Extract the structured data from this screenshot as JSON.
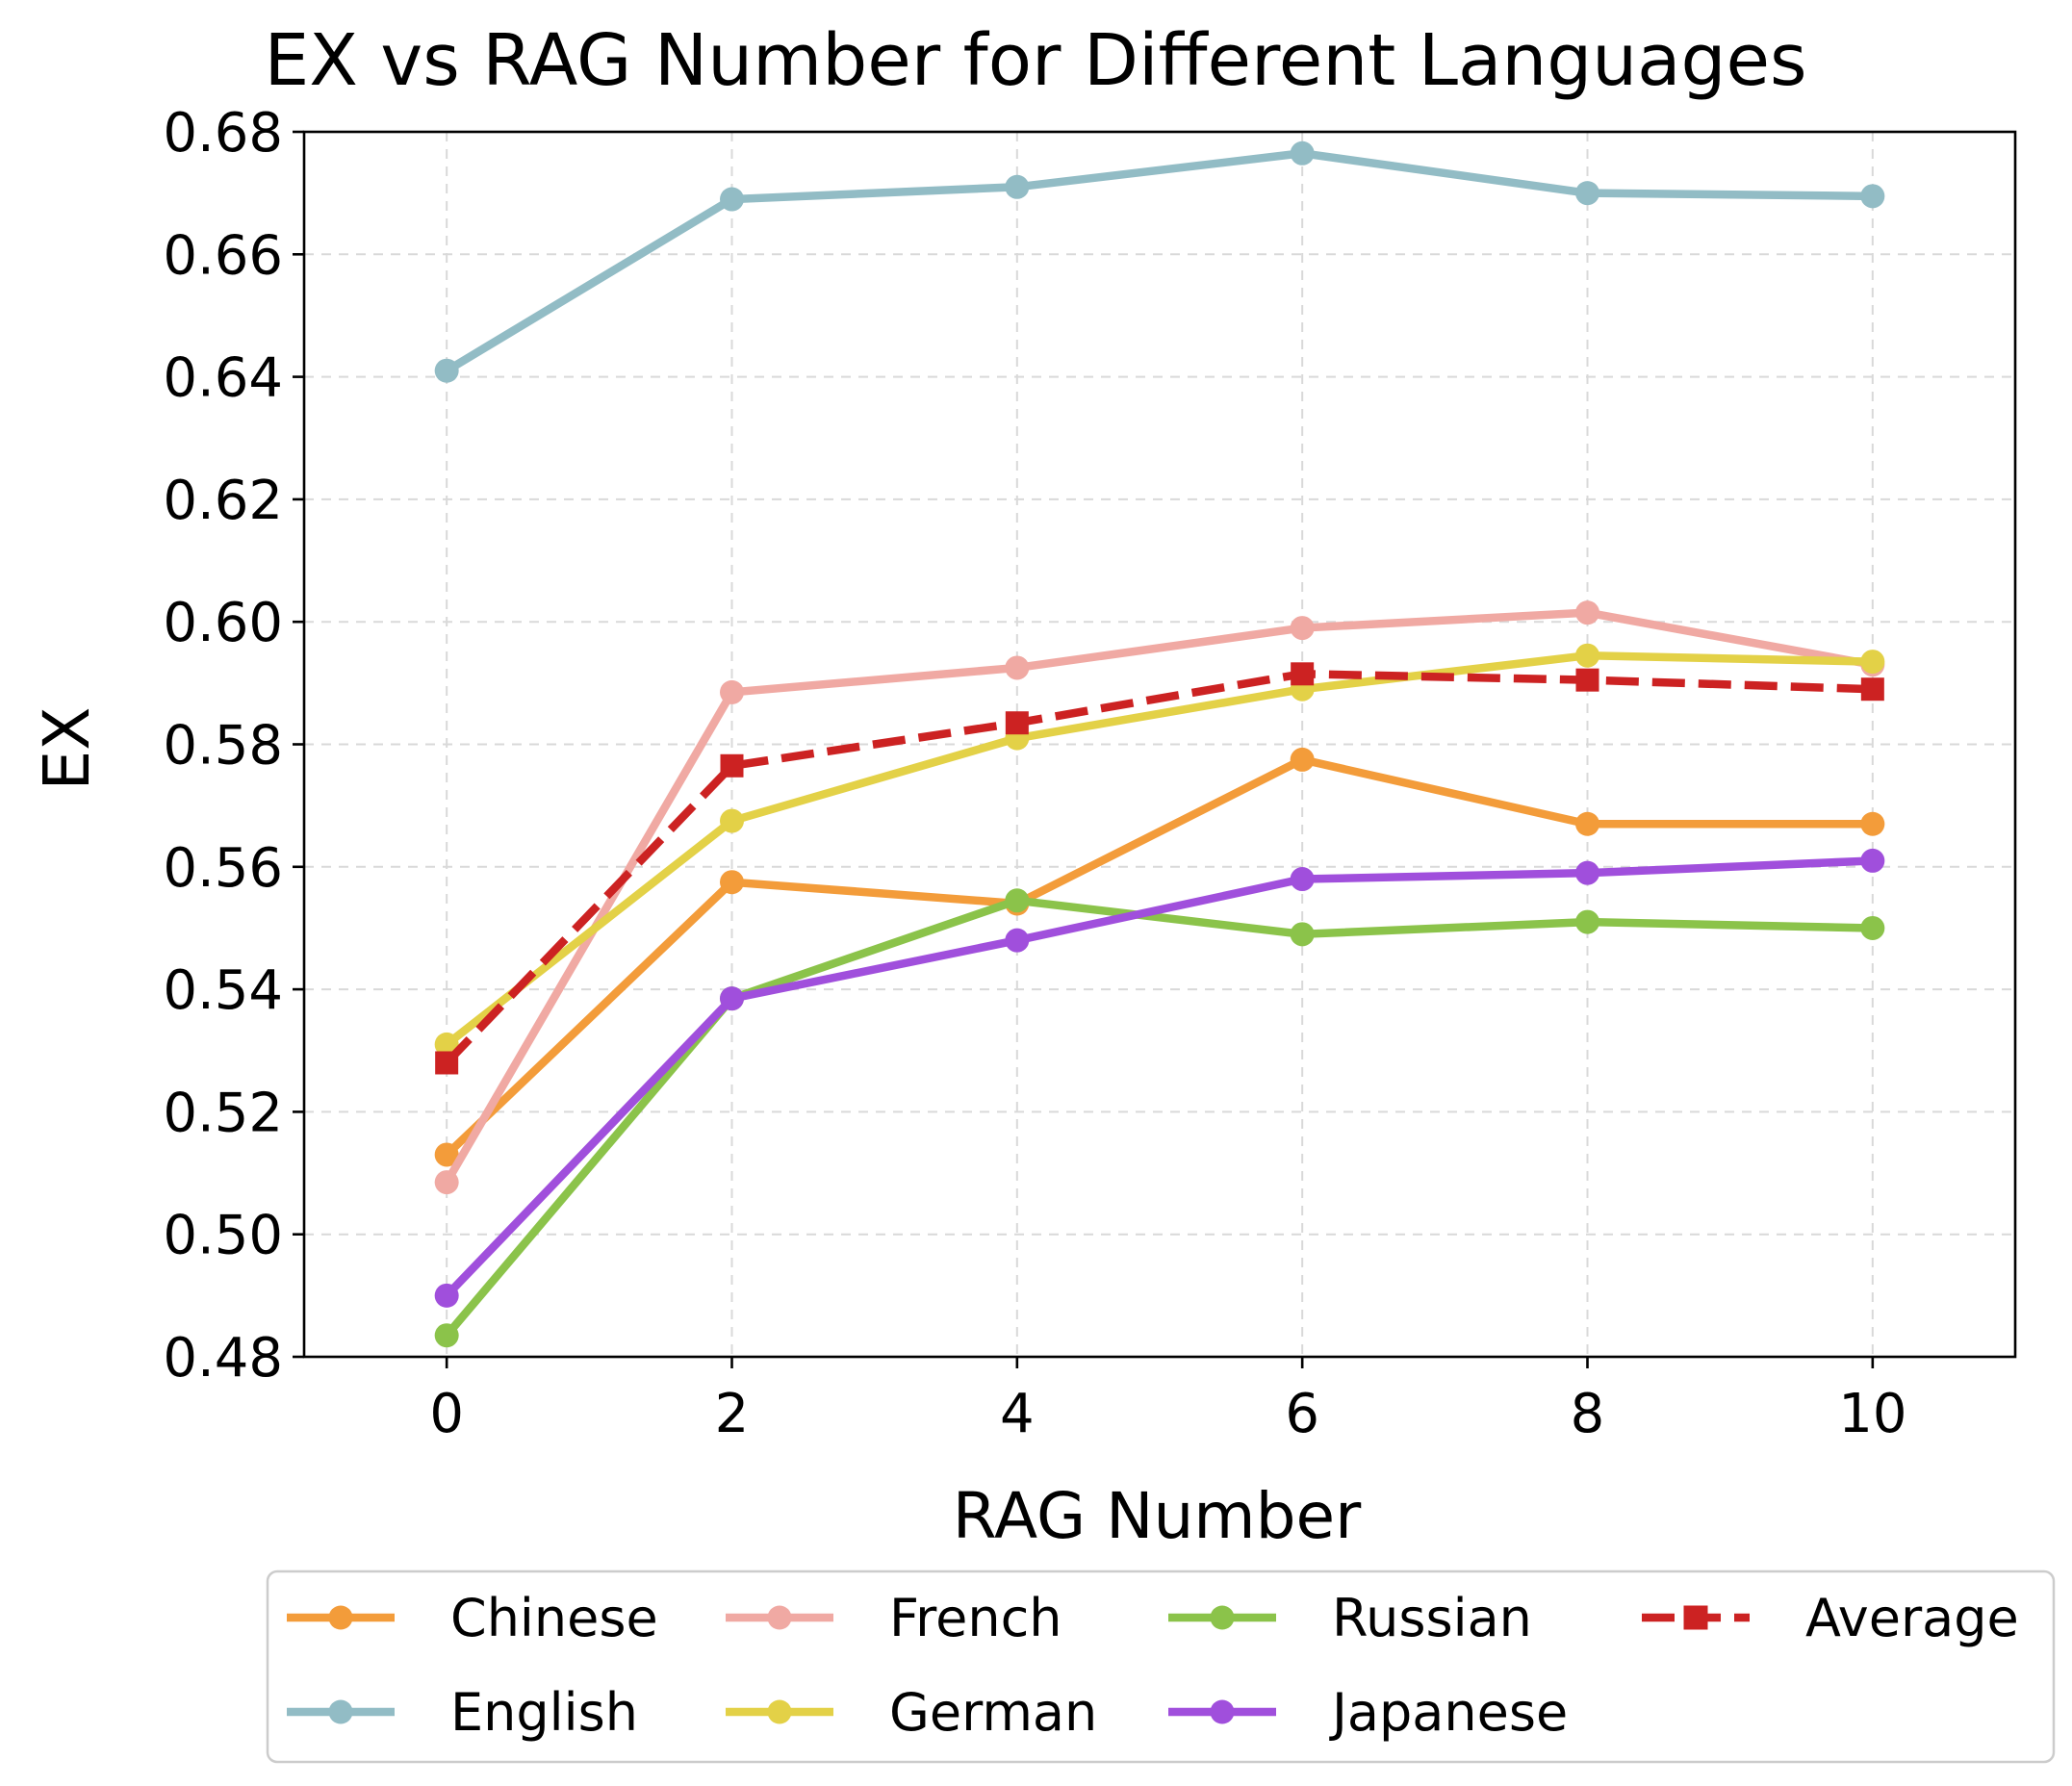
{
  "chart_data": {
    "type": "line",
    "title": "EX vs RAG Number for Different Languages",
    "xlabel": "RAG Number",
    "ylabel": "EX",
    "x": [
      0,
      2,
      4,
      6,
      8,
      10
    ],
    "xticks": [
      0,
      2,
      4,
      6,
      8,
      10
    ],
    "xlim": [
      -1,
      11
    ],
    "yticks": [
      0.48,
      0.5,
      0.52,
      0.54,
      0.56,
      0.58,
      0.6,
      0.62,
      0.64,
      0.66,
      0.68
    ],
    "ytick_labels": [
      "0.48",
      "0.50",
      "0.52",
      "0.54",
      "0.56",
      "0.58",
      "0.60",
      "0.62",
      "0.64",
      "0.66",
      "0.68"
    ],
    "xtick_labels": [
      "0",
      "2",
      "4",
      "6",
      "8",
      "10"
    ],
    "ylim": [
      0.48,
      0.68
    ],
    "grid": true,
    "legend_position": "bottom",
    "series": [
      {
        "name": "Chinese",
        "color": "#F39C3A",
        "marker": "circle",
        "dashed": false,
        "values": [
          0.513,
          0.5575,
          0.554,
          0.5775,
          0.567,
          0.567
        ]
      },
      {
        "name": "English",
        "color": "#92BCC5",
        "marker": "circle",
        "dashed": false,
        "values": [
          0.641,
          0.669,
          0.671,
          0.6765,
          0.67,
          0.6695
        ]
      },
      {
        "name": "French",
        "color": "#F0A9A3",
        "marker": "circle",
        "dashed": false,
        "values": [
          0.5085,
          0.5885,
          0.5925,
          0.599,
          0.6015,
          0.593
        ]
      },
      {
        "name": "German",
        "color": "#E3D147",
        "marker": "circle",
        "dashed": false,
        "values": [
          0.531,
          0.5675,
          0.581,
          0.589,
          0.5945,
          0.5935
        ]
      },
      {
        "name": "Russian",
        "color": "#8BC34A",
        "marker": "circle",
        "dashed": false,
        "values": [
          0.4835,
          0.5385,
          0.5545,
          0.549,
          0.551,
          0.55
        ]
      },
      {
        "name": "Japanese",
        "color": "#A04FDC",
        "marker": "circle",
        "dashed": false,
        "values": [
          0.49,
          0.5385,
          0.548,
          0.558,
          0.559,
          0.561
        ]
      },
      {
        "name": "Average",
        "color": "#CC2222",
        "marker": "square",
        "dashed": true,
        "values": [
          0.528,
          0.5765,
          0.5835,
          0.5915,
          0.5905,
          0.589
        ]
      }
    ]
  }
}
